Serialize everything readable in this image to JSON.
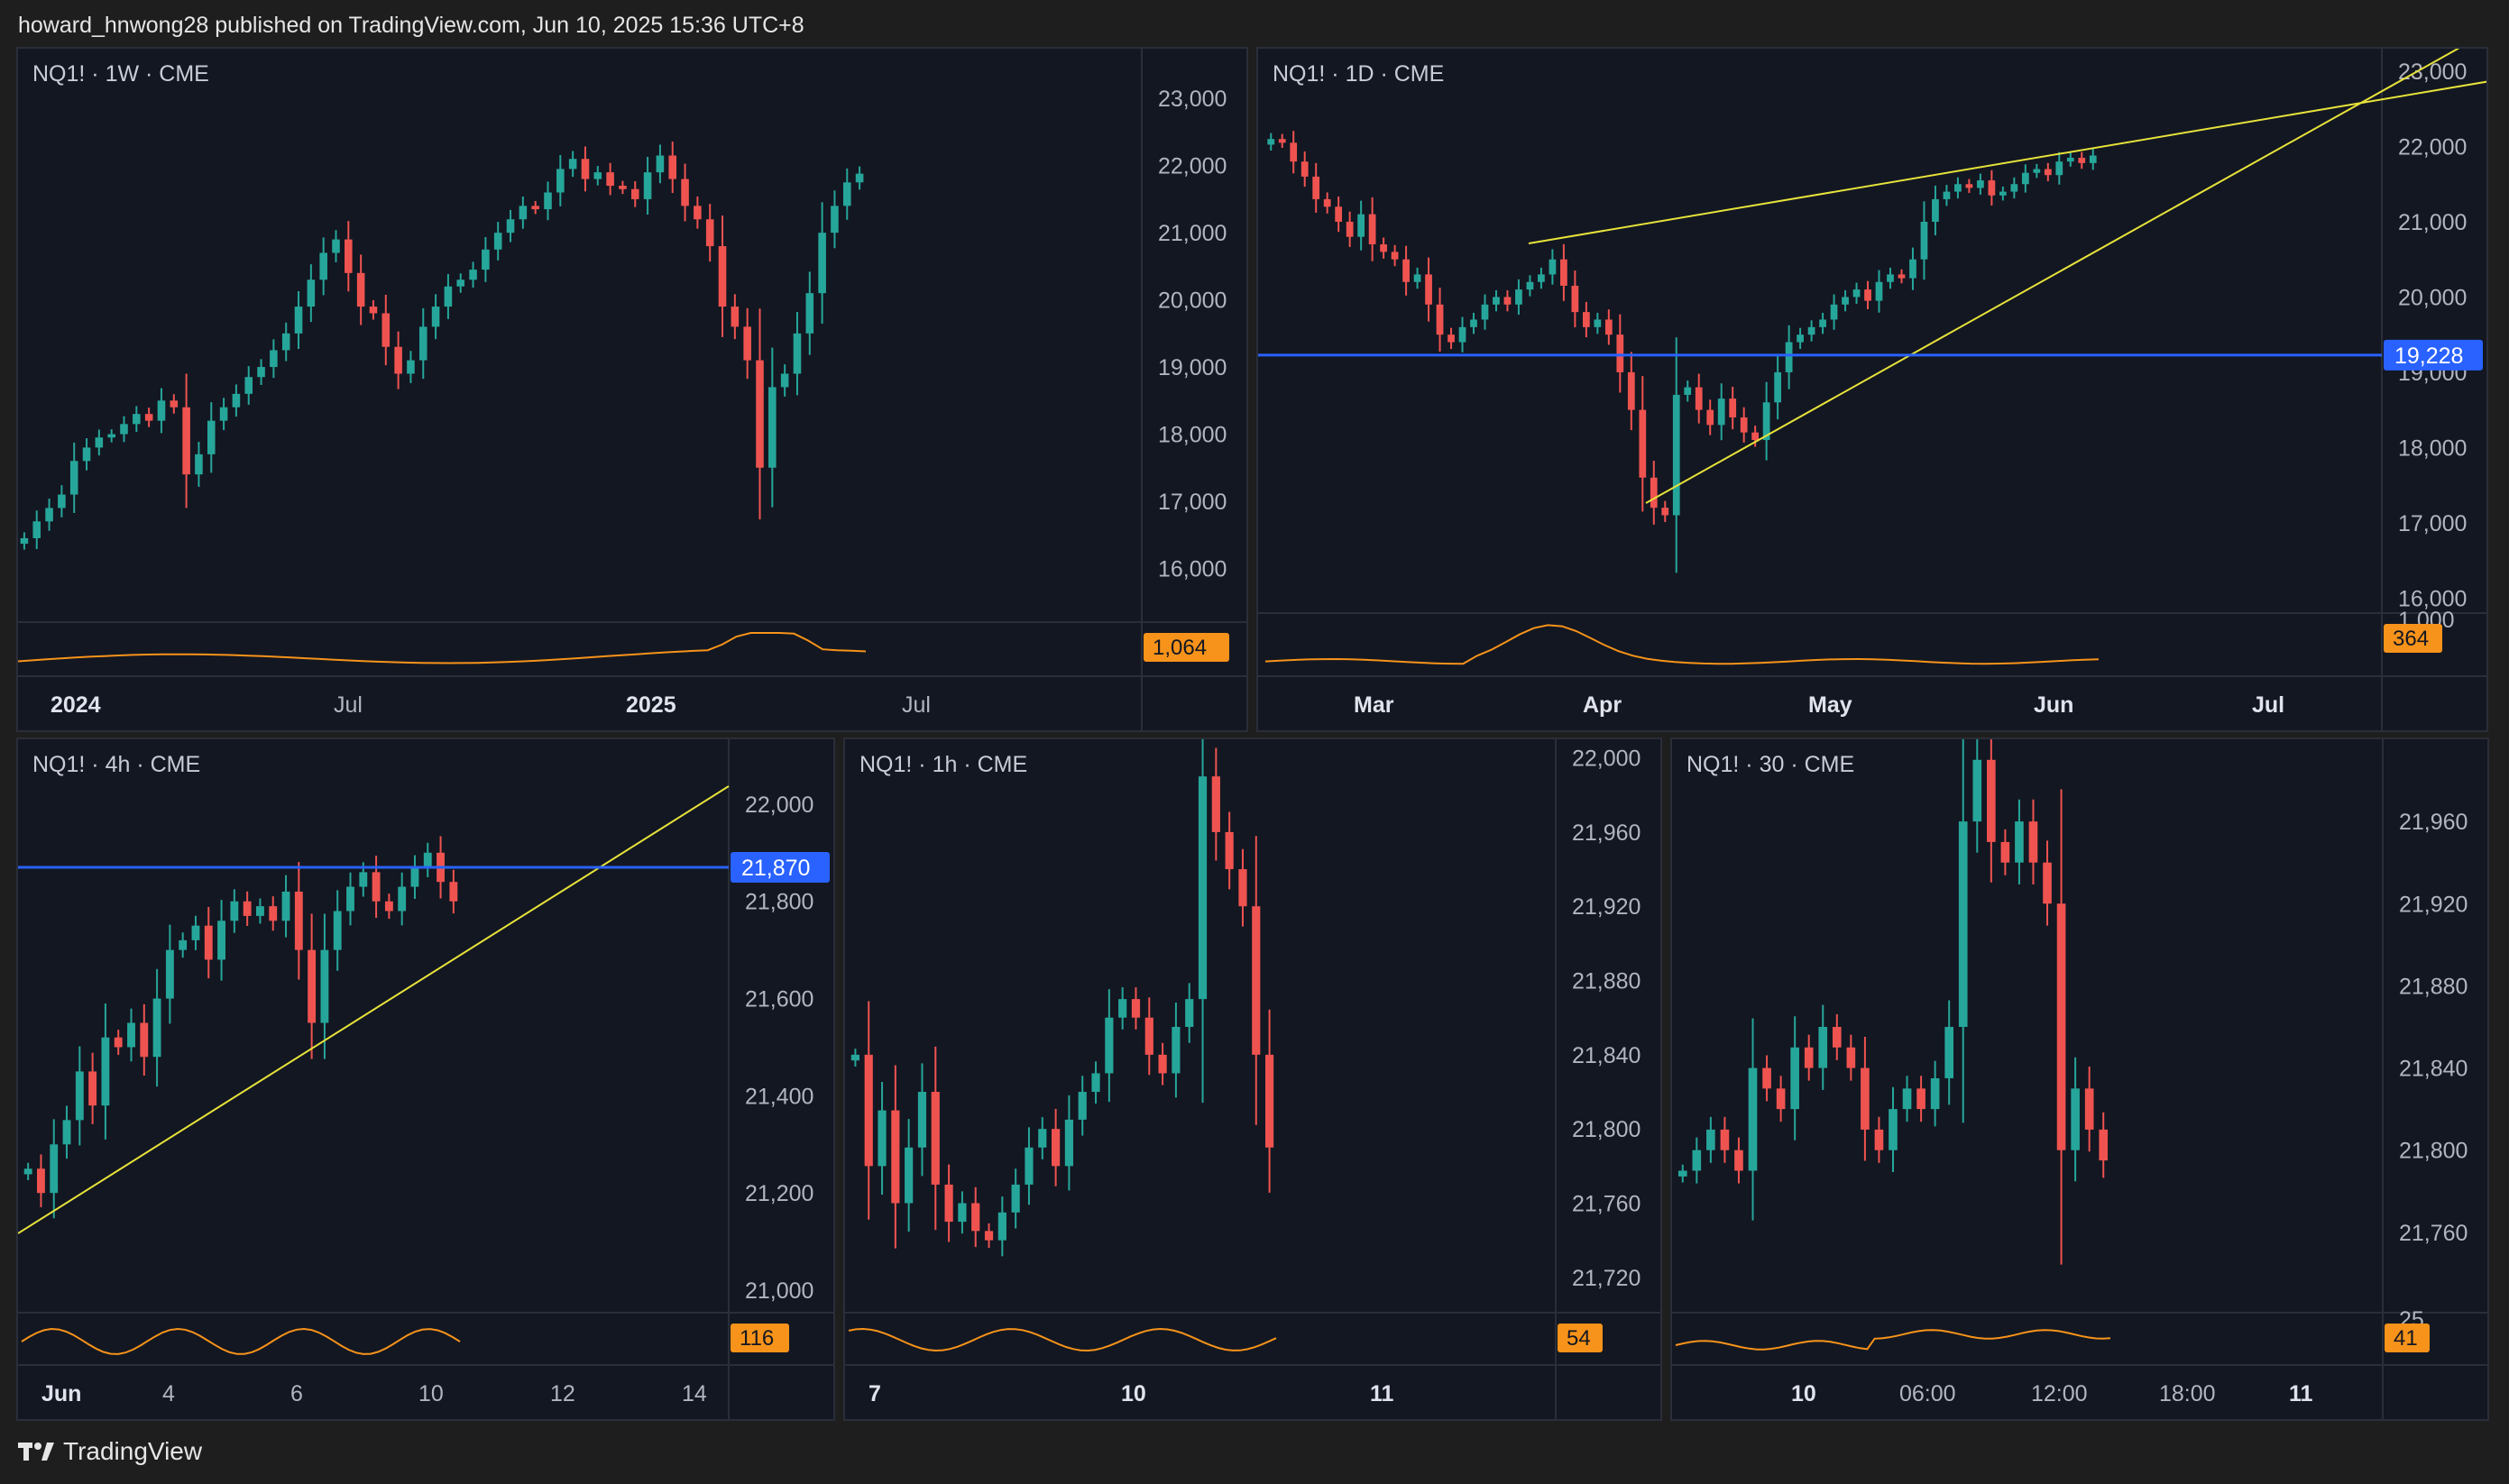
{
  "header": {
    "text": "howard_hnwong28 published on TradingView.com, Jun 10, 2025 15:36 UTC+8"
  },
  "footer": {
    "brand": "TradingView",
    "logo_icon": "tradingview-logo-icon"
  },
  "colors": {
    "background": "#131722",
    "up": "#26a69a",
    "down": "#ef5350",
    "trendline": "#e7e33a",
    "hline": "#2962ff",
    "indicator": "#f7931a",
    "axis_text": "#b2b5be"
  },
  "panels": [
    {
      "id": "weekly",
      "label": "NQ1! · 1W · CME",
      "ylim": [
        15200,
        23500
      ],
      "yticks": [
        "23,000",
        "22,000",
        "21,000",
        "20,000",
        "19,000",
        "18,000",
        "17,000",
        "16,000"
      ],
      "xticks": [
        {
          "label": "2024",
          "bold": true
        },
        {
          "label": "Jul"
        },
        {
          "label": "2025",
          "bold": true
        },
        {
          "label": "Jul"
        }
      ],
      "indicator_value": "1,064",
      "hline": null
    },
    {
      "id": "daily",
      "label": "NQ1! · 1D · CME",
      "ylim": [
        15800,
        23300
      ],
      "yticks": [
        "23,000",
        "22,000",
        "21,000",
        "20,000",
        "19,000",
        "18,000",
        "17,000",
        "16,000"
      ],
      "xticks": [
        {
          "label": "Mar",
          "bold": true
        },
        {
          "label": "Apr",
          "bold": true
        },
        {
          "label": "May",
          "bold": true
        },
        {
          "label": "Jun",
          "bold": true
        },
        {
          "label": "Jul",
          "bold": true
        }
      ],
      "indicator_axis_label": "1,000",
      "indicator_value": "364",
      "hline": {
        "value": 19228,
        "label": "19,228"
      }
    },
    {
      "id": "h4",
      "label": "NQ1! · 4h · CME",
      "ylim": [
        20950,
        22100
      ],
      "yticks": [
        "22,000",
        "21,800",
        "21,600",
        "21,400",
        "21,200",
        "21,000"
      ],
      "xticks": [
        {
          "label": "Jun",
          "bold": true
        },
        {
          "label": "4"
        },
        {
          "label": "6"
        },
        {
          "label": "10"
        },
        {
          "label": "12"
        },
        {
          "label": "14"
        }
      ],
      "indicator_value": "116",
      "hline": {
        "value": 21870,
        "label": "21,870"
      }
    },
    {
      "id": "h1",
      "label": "NQ1! · 1h · CME",
      "ylim": [
        21700,
        22010
      ],
      "yticks": [
        "22,000",
        "21,960",
        "21,920",
        "21,880",
        "21,840",
        "21,800",
        "21,760",
        "21,720"
      ],
      "xticks": [
        {
          "label": "7",
          "bold": true
        },
        {
          "label": "10",
          "bold": true
        },
        {
          "label": "11",
          "bold": true
        }
      ],
      "indicator_value": "54",
      "hline": null
    },
    {
      "id": "m30",
      "label": "NQ1! · 30 · CME",
      "ylim": [
        21720,
        22000
      ],
      "yticks": [
        "22,000",
        "21,960",
        "21,920",
        "21,880",
        "21,840",
        "21,800",
        "21,760"
      ],
      "xticks": [
        {
          "label": "10",
          "bold": true
        },
        {
          "label": "06:00"
        },
        {
          "label": "12:00"
        },
        {
          "label": "18:00"
        },
        {
          "label": "11",
          "bold": true
        }
      ],
      "indicator_axis_label": "25",
      "indicator_value": "41",
      "hline": null
    }
  ],
  "chart_data": [
    {
      "type": "candlestick",
      "symbol": "NQ1!",
      "interval": "1W",
      "exchange": "CME",
      "series_close": [
        16450,
        16700,
        16900,
        17100,
        17600,
        17800,
        17950,
        18000,
        18150,
        18300,
        18200,
        18500,
        18400,
        17400,
        17700,
        18200,
        18400,
        18600,
        18850,
        19000,
        19250,
        19500,
        19900,
        20300,
        20700,
        20900,
        20400,
        19900,
        19800,
        19300,
        18900,
        19100,
        19600,
        19900,
        20200,
        20300,
        20450,
        20750,
        21000,
        21200,
        21400,
        21350,
        21600,
        21950,
        22100,
        21800,
        21900,
        21700,
        21650,
        21500,
        21900,
        22150,
        21800,
        21400,
        21200,
        20800,
        19900,
        19600,
        19100,
        17500,
        18700,
        18900,
        19500,
        20100,
        21000,
        21400,
        21750,
        21880
      ]
    },
    {
      "type": "candlestick",
      "symbol": "NQ1!",
      "interval": "1D",
      "exchange": "CME",
      "series_close": [
        22100,
        22050,
        21800,
        21600,
        21300,
        21200,
        21000,
        20800,
        21100,
        20700,
        20600,
        20500,
        20200,
        20300,
        19900,
        19500,
        19400,
        19600,
        19700,
        19900,
        20000,
        19900,
        20100,
        20200,
        20300,
        20500,
        20150,
        19800,
        19600,
        19700,
        19500,
        19000,
        18500,
        17600,
        17200,
        17100,
        18700,
        18800,
        18500,
        18300,
        18650,
        18400,
        18200,
        18100,
        18600,
        19000,
        19400,
        19500,
        19600,
        19700,
        19900,
        20000,
        20100,
        19950,
        20200,
        20300,
        20250,
        20500,
        21000,
        21300,
        21400,
        21500,
        21450,
        21550,
        21350,
        21400,
        21500,
        21650,
        21700,
        21620,
        21800,
        21850,
        21780,
        21880
      ]
    },
    {
      "type": "candlestick",
      "symbol": "NQ1!",
      "interval": "4h",
      "exchange": "CME",
      "hline": 21870,
      "series_close": [
        21250,
        21200,
        21300,
        21350,
        21450,
        21380,
        21520,
        21500,
        21550,
        21480,
        21600,
        21700,
        21720,
        21750,
        21680,
        21760,
        21800,
        21770,
        21790,
        21760,
        21820,
        21700,
        21550,
        21700,
        21780,
        21830,
        21860,
        21800,
        21780,
        21830,
        21870,
        21900,
        21840,
        21800
      ]
    },
    {
      "type": "candlestick",
      "symbol": "NQ1!",
      "interval": "1h",
      "exchange": "CME",
      "series_close": [
        21840,
        21780,
        21810,
        21760,
        21790,
        21820,
        21770,
        21750,
        21760,
        21745,
        21740,
        21755,
        21770,
        21790,
        21800,
        21780,
        21805,
        21820,
        21830,
        21860,
        21870,
        21860,
        21840,
        21830,
        21855,
        21870,
        21990,
        21960,
        21940,
        21920,
        21840,
        21790
      ]
    },
    {
      "type": "candlestick",
      "symbol": "NQ1!",
      "interval": "30",
      "exchange": "CME",
      "series_close": [
        21790,
        21800,
        21810,
        21800,
        21790,
        21840,
        21830,
        21820,
        21850,
        21840,
        21860,
        21850,
        21840,
        21810,
        21800,
        21820,
        21830,
        21820,
        21835,
        21860,
        21960,
        21990,
        21950,
        21940,
        21960,
        21940,
        21920,
        21800,
        21830,
        21810,
        21795
      ]
    }
  ]
}
